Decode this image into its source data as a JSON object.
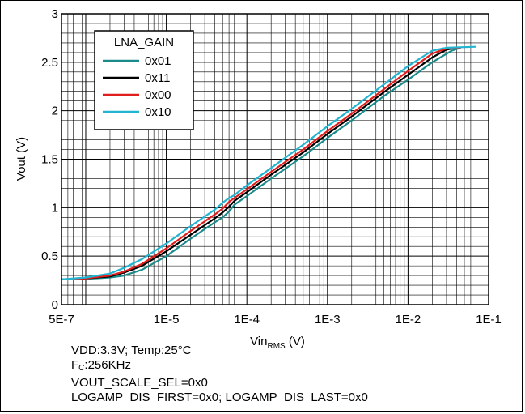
{
  "chart_data": {
    "type": "line",
    "xlabel_main": "Vin",
    "xlabel_sub": "RMS",
    "xlabel_unit": " (V)",
    "ylabel": "Vout (V)",
    "xscale": "log",
    "xlim": [
      5e-07,
      0.1
    ],
    "ylim": [
      0,
      3
    ],
    "x_ticks": [
      {
        "value": 5e-07,
        "label": "5E-7"
      },
      {
        "value": 1e-05,
        "label": "1E-5"
      },
      {
        "value": 0.0001,
        "label": "1E-4"
      },
      {
        "value": 0.001,
        "label": "1E-3"
      },
      {
        "value": 0.01,
        "label": "1E-2"
      },
      {
        "value": 0.1,
        "label": "1E-1"
      }
    ],
    "y_ticks": [
      {
        "value": 0,
        "label": "0"
      },
      {
        "value": 0.5,
        "label": "0.5"
      },
      {
        "value": 1,
        "label": "1"
      },
      {
        "value": 1.5,
        "label": "1.5"
      },
      {
        "value": 2,
        "label": "2"
      },
      {
        "value": 2.5,
        "label": "2.5"
      },
      {
        "value": 3,
        "label": "3"
      }
    ],
    "grid": true,
    "legend_title": "LNA_GAIN",
    "legend_position": "top-left",
    "series": [
      {
        "name": "0x01",
        "color": "#1a8a8a",
        "points": [
          [
            5e-07,
            0.26
          ],
          [
            1e-06,
            0.265
          ],
          [
            2e-06,
            0.28
          ],
          [
            3e-06,
            0.3
          ],
          [
            5e-06,
            0.36
          ],
          [
            1e-05,
            0.5
          ],
          [
            2e-05,
            0.68
          ],
          [
            4e-05,
            0.85
          ],
          [
            5e-05,
            0.9
          ],
          [
            6e-05,
            0.96
          ],
          [
            7e-05,
            1.03
          ],
          [
            0.0001,
            1.12
          ],
          [
            0.0002,
            1.3
          ],
          [
            0.0005,
            1.53
          ],
          [
            0.001,
            1.72
          ],
          [
            0.002,
            1.9
          ],
          [
            0.005,
            2.15
          ],
          [
            0.01,
            2.32
          ],
          [
            0.02,
            2.5
          ],
          [
            0.035,
            2.62
          ],
          [
            0.045,
            2.65
          ]
        ]
      },
      {
        "name": "0x11",
        "color": "#000000",
        "points": [
          [
            5e-07,
            0.26
          ],
          [
            1e-06,
            0.27
          ],
          [
            2e-06,
            0.29
          ],
          [
            3e-06,
            0.33
          ],
          [
            5e-06,
            0.4
          ],
          [
            1e-05,
            0.55
          ],
          [
            2e-05,
            0.72
          ],
          [
            4e-05,
            0.89
          ],
          [
            5e-05,
            0.95
          ],
          [
            6e-05,
            1.01
          ],
          [
            7e-05,
            1.07
          ],
          [
            0.0001,
            1.16
          ],
          [
            0.0002,
            1.34
          ],
          [
            0.0005,
            1.57
          ],
          [
            0.001,
            1.76
          ],
          [
            0.002,
            1.94
          ],
          [
            0.005,
            2.19
          ],
          [
            0.01,
            2.37
          ],
          [
            0.02,
            2.55
          ],
          [
            0.03,
            2.63
          ],
          [
            0.04,
            2.65
          ]
        ]
      },
      {
        "name": "0x00",
        "color": "#e01e1e",
        "points": [
          [
            5e-07,
            0.26
          ],
          [
            1e-06,
            0.27
          ],
          [
            2e-06,
            0.3
          ],
          [
            3e-06,
            0.34
          ],
          [
            5e-06,
            0.42
          ],
          [
            1e-05,
            0.58
          ],
          [
            2e-05,
            0.76
          ],
          [
            4e-05,
            0.93
          ],
          [
            5e-05,
            0.99
          ],
          [
            6e-05,
            1.06
          ],
          [
            7e-05,
            1.1
          ],
          [
            0.0001,
            1.19
          ],
          [
            0.0002,
            1.37
          ],
          [
            0.0005,
            1.6
          ],
          [
            0.001,
            1.79
          ],
          [
            0.002,
            1.97
          ],
          [
            0.005,
            2.22
          ],
          [
            0.01,
            2.41
          ],
          [
            0.02,
            2.59
          ],
          [
            0.03,
            2.64
          ],
          [
            0.045,
            2.65
          ]
        ]
      },
      {
        "name": "0x10",
        "color": "#22b4d0",
        "points": [
          [
            5e-07,
            0.26
          ],
          [
            1e-06,
            0.28
          ],
          [
            2e-06,
            0.32
          ],
          [
            3e-06,
            0.38
          ],
          [
            5e-06,
            0.47
          ],
          [
            1e-05,
            0.63
          ],
          [
            2e-05,
            0.81
          ],
          [
            4e-05,
            0.98
          ],
          [
            5e-05,
            1.05
          ],
          [
            6e-05,
            1.1
          ],
          [
            7e-05,
            1.13
          ],
          [
            0.0001,
            1.23
          ],
          [
            0.0002,
            1.41
          ],
          [
            0.0005,
            1.65
          ],
          [
            0.001,
            1.84
          ],
          [
            0.002,
            2.02
          ],
          [
            0.005,
            2.27
          ],
          [
            0.01,
            2.46
          ],
          [
            0.02,
            2.62
          ],
          [
            0.03,
            2.65
          ],
          [
            0.07,
            2.66
          ]
        ]
      }
    ]
  },
  "notes": {
    "line1": "VDD:3.3V; Temp:25°C",
    "line2_main": "F",
    "line2_sub": "C",
    "line2_rest": ":256KHz",
    "line3": "VOUT_SCALE_SEL=0x0",
    "line4": "LOGAMP_DIS_FIRST=0x0; LOGAMP_DIS_LAST=0x0"
  }
}
